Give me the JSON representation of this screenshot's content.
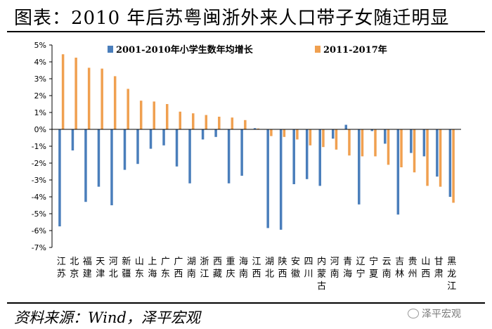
{
  "page": {
    "title": "图表：2010 年后苏粤闽浙外来人口带子女随迁明显",
    "source": "资料来源：Wind，泽平宏观",
    "watermark": "泽平宏观"
  },
  "chart_data": {
    "type": "bar",
    "title": "图表：2010 年后苏粤闽浙外来人口带子女随迁明显",
    "ylim": [
      -7,
      5
    ],
    "y_ticks": [
      "5%",
      "4%",
      "3%",
      "2%",
      "1%",
      "0%",
      "-1%",
      "-2%",
      "-3%",
      "-4%",
      "-5%",
      "-6%",
      "-7%"
    ],
    "categories": [
      "江苏",
      "北京",
      "福建",
      "天津",
      "河北",
      "新疆",
      "山东",
      "上海",
      "广东",
      "广西",
      "湖南",
      "浙江",
      "西藏",
      "重庆",
      "海南",
      "江西",
      "湖北",
      "陕西",
      "安徽",
      "四川",
      "内蒙古",
      "河南",
      "青海",
      "辽宁",
      "宁夏",
      "云南",
      "吉林",
      "贵州",
      "山西",
      "甘肃",
      "黑龙江"
    ],
    "series": [
      {
        "name": "2001-2010年小学生数年均增长",
        "color": "#4a7ebb",
        "values": [
          -5.75,
          -1.25,
          -4.3,
          -3.4,
          -4.5,
          -2.4,
          -2.05,
          -1.15,
          -0.95,
          -2.2,
          -3.2,
          -0.6,
          -0.45,
          -3.2,
          -2.75,
          0.07,
          -5.85,
          -5.95,
          -3.25,
          -2.95,
          -3.35,
          -0.55,
          0.27,
          -4.45,
          -0.1,
          -0.85,
          -5.05,
          -1.4,
          -1.6,
          -2.8,
          -4.0
        ]
      },
      {
        "name": "2011-2017年",
        "color": "#f0a050",
        "values": [
          4.45,
          4.25,
          3.65,
          3.6,
          3.15,
          2.4,
          1.7,
          1.65,
          1.5,
          1.05,
          0.95,
          0.85,
          0.75,
          0.7,
          0.55,
          0.05,
          -0.4,
          -0.45,
          -0.6,
          -0.95,
          -1.05,
          -1.2,
          -1.55,
          -1.6,
          -1.6,
          -2.1,
          -2.25,
          -2.55,
          -3.35,
          -3.4,
          -4.35
        ]
      }
    ]
  }
}
